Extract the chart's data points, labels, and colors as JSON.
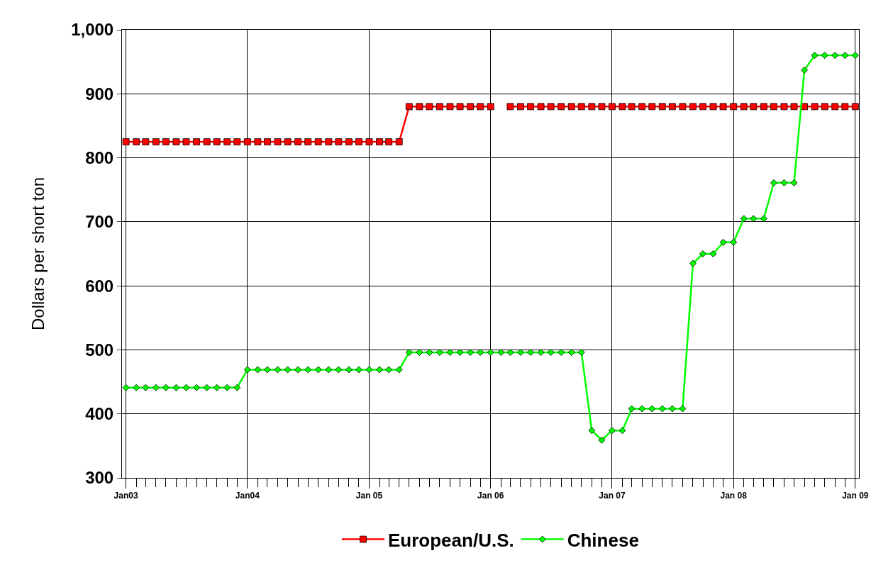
{
  "chart_data": {
    "type": "line",
    "ylabel": "Dollars per short ton",
    "x": [
      "2003-01",
      "2003-02",
      "2003-03",
      "2003-04",
      "2003-05",
      "2003-06",
      "2003-07",
      "2003-08",
      "2003-09",
      "2003-10",
      "2003-11",
      "2003-12",
      "2004-01",
      "2004-02",
      "2004-03",
      "2004-04",
      "2004-05",
      "2004-06",
      "2004-07",
      "2004-08",
      "2004-09",
      "2004-10",
      "2004-11",
      "2004-12",
      "2005-01",
      "2005-02",
      "2005-03",
      "2005-04",
      "2005-05",
      "2005-06",
      "2005-07",
      "2005-08",
      "2005-09",
      "2005-10",
      "2005-11",
      "2005-12",
      "2006-01",
      "2006-02",
      "2006-03",
      "2006-04",
      "2006-05",
      "2006-06",
      "2006-07",
      "2006-08",
      "2006-09",
      "2006-10",
      "2006-11",
      "2006-12",
      "2007-01",
      "2007-02",
      "2007-03",
      "2007-04",
      "2007-05",
      "2007-06",
      "2007-07",
      "2007-08",
      "2007-09",
      "2007-10",
      "2007-11",
      "2007-12",
      "2008-01",
      "2008-02",
      "2008-03",
      "2008-04",
      "2008-05",
      "2008-06",
      "2008-07",
      "2008-08",
      "2008-09",
      "2008-10",
      "2008-11",
      "2008-12",
      "2009-01"
    ],
    "series": [
      {
        "name": "European/U.S.",
        "color": "#ff0000",
        "marker": "square",
        "values": [
          825,
          825,
          825,
          825,
          825,
          825,
          825,
          825,
          825,
          825,
          825,
          825,
          825,
          825,
          825,
          825,
          825,
          825,
          825,
          825,
          825,
          825,
          825,
          825,
          825,
          825,
          825,
          825,
          880,
          880,
          880,
          880,
          880,
          880,
          880,
          880,
          880,
          null,
          880,
          880,
          880,
          880,
          880,
          880,
          880,
          880,
          880,
          880,
          880,
          880,
          880,
          880,
          880,
          880,
          880,
          880,
          880,
          880,
          880,
          880,
          880,
          880,
          880,
          880,
          880,
          880,
          880,
          880,
          880,
          880,
          880,
          880,
          880
        ]
      },
      {
        "name": "Chinese",
        "color": "#00ff00",
        "marker": "diamond",
        "values": [
          441,
          441,
          441,
          441,
          441,
          441,
          441,
          441,
          441,
          441,
          441,
          441,
          469,
          469,
          469,
          469,
          469,
          469,
          469,
          469,
          469,
          469,
          469,
          469,
          469,
          469,
          469,
          469,
          496,
          496,
          496,
          496,
          496,
          496,
          496,
          496,
          496,
          496,
          496,
          496,
          496,
          496,
          496,
          496,
          496,
          496,
          374,
          359,
          374,
          374,
          408,
          408,
          408,
          408,
          408,
          408,
          635,
          650,
          650,
          668,
          668,
          705,
          705,
          705,
          761,
          761,
          761,
          937,
          960,
          960,
          960,
          960,
          960
        ]
      }
    ],
    "xlim": [
      "2002-12-20",
      "2009-01-12"
    ],
    "xticks": [
      {
        "value": "2003-01",
        "label": "Jan03"
      },
      {
        "value": "2004-01",
        "label": "Jan04"
      },
      {
        "value": "2005-01",
        "label": "Jan 05"
      },
      {
        "value": "2006-01",
        "label": "Jan 06"
      },
      {
        "value": "2007-01",
        "label": "Jan 07"
      },
      {
        "value": "2008-01",
        "label": "Jan 08"
      },
      {
        "value": "2009-01",
        "label": "Jan 09"
      }
    ],
    "ylim": [
      300,
      1000
    ],
    "yticks": [
      300,
      400,
      500,
      600,
      700,
      800,
      900,
      {
        "value": 1000,
        "label": "1,000"
      }
    ],
    "grid": true,
    "legend": "bottom",
    "line_style": "solid"
  }
}
